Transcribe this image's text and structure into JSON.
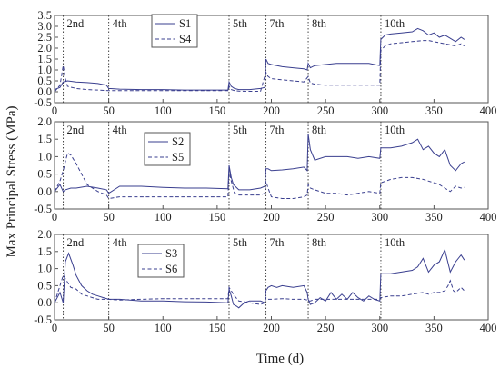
{
  "chart_data": {
    "type": "line",
    "xlabel": "Time (d)",
    "ylabel": "Max Principal Stress (MPa)",
    "xlim": [
      0,
      400
    ],
    "x_ticks": [
      "0",
      "50",
      "100",
      "150",
      "200",
      "250",
      "300",
      "350",
      "400"
    ],
    "stage_lines": [
      {
        "x": 8,
        "label": "2nd"
      },
      {
        "x": 50,
        "label": "4th"
      },
      {
        "x": 161,
        "label": "5th"
      },
      {
        "x": 195,
        "label": "7th"
      },
      {
        "x": 234,
        "label": "8th"
      },
      {
        "x": 301,
        "label": "10th"
      }
    ],
    "color": "#3a3f8f",
    "panels": [
      {
        "ylim": [
          -0.5,
          3.5
        ],
        "y_ticks": [
          "-0.5",
          "0.0",
          "0.5",
          "1.0",
          "1.5",
          "2.0",
          "2.5",
          "3.0",
          "3.5"
        ],
        "y_tick_values": [
          -0.5,
          0,
          0.5,
          1,
          1.5,
          2,
          2.5,
          3,
          3.5
        ],
        "series": [
          {
            "name": "S1",
            "style": "solid",
            "x": [
              0,
              5,
              8,
              12,
              20,
              30,
              40,
              48,
              50,
              60,
              80,
              100,
              120,
              140,
              160,
              161,
              163,
              166,
              170,
              180,
              190,
              194,
              195,
              197,
              200,
              210,
              220,
              230,
              233,
              234,
              236,
              240,
              250,
              260,
              270,
              280,
              290,
              295,
              300,
              301,
              305,
              310,
              320,
              330,
              335,
              340,
              345,
              350,
              355,
              360,
              365,
              370,
              375,
              378
            ],
            "y": [
              0.1,
              0.2,
              0.45,
              0.5,
              0.45,
              0.42,
              0.38,
              0.3,
              0.15,
              0.12,
              0.1,
              0.1,
              0.08,
              0.08,
              0.08,
              0.45,
              0.25,
              0.15,
              0.1,
              0.1,
              0.15,
              0.2,
              1.5,
              1.3,
              1.25,
              1.15,
              1.1,
              1.05,
              1.0,
              1.3,
              1.1,
              1.2,
              1.25,
              1.3,
              1.3,
              1.3,
              1.3,
              1.25,
              1.2,
              2.4,
              2.6,
              2.65,
              2.7,
              2.75,
              2.9,
              2.8,
              2.6,
              2.7,
              2.5,
              2.6,
              2.45,
              2.3,
              2.5,
              2.4
            ]
          },
          {
            "name": "S4",
            "style": "dashed",
            "x": [
              0,
              5,
              8,
              10,
              12,
              20,
              30,
              40,
              50,
              60,
              80,
              100,
              120,
              140,
              160,
              161,
              163,
              166,
              170,
              180,
              190,
              195,
              197,
              200,
              210,
              220,
              230,
              234,
              236,
              240,
              250,
              260,
              270,
              280,
              290,
              300,
              301,
              305,
              310,
              320,
              330,
              340,
              345,
              350,
              355,
              360,
              365,
              370,
              375,
              378
            ],
            "y": [
              0.0,
              0.3,
              1.2,
              0.6,
              0.25,
              0.15,
              0.1,
              0.08,
              0.05,
              0.05,
              0.05,
              0.05,
              0.05,
              0.05,
              0.05,
              0.25,
              0.1,
              0.05,
              0.03,
              0.02,
              0.02,
              0.9,
              0.7,
              0.6,
              0.55,
              0.5,
              0.45,
              0.7,
              0.4,
              0.35,
              0.3,
              0.3,
              0.3,
              0.3,
              0.3,
              0.3,
              1.9,
              2.1,
              2.2,
              2.25,
              2.3,
              2.35,
              2.35,
              2.3,
              2.25,
              2.2,
              2.15,
              2.1,
              2.2,
              2.1
            ]
          }
        ]
      },
      {
        "ylim": [
          -0.5,
          2.0
        ],
        "y_ticks": [
          "-0.5",
          "0.0",
          "0.5",
          "1.0",
          "1.5",
          "2.0"
        ],
        "y_tick_values": [
          -0.5,
          0,
          0.5,
          1,
          1.5,
          2
        ],
        "series": [
          {
            "name": "S2",
            "style": "solid",
            "x": [
              0,
              5,
              8,
              10,
              15,
              20,
              30,
              40,
              48,
              50,
              60,
              80,
              100,
              120,
              140,
              160,
              161,
              163,
              165,
              170,
              180,
              190,
              194,
              195,
              197,
              200,
              210,
              220,
              230,
              233,
              234,
              236,
              240,
              250,
              260,
              270,
              280,
              290,
              300,
              301,
              310,
              320,
              330,
              335,
              340,
              345,
              350,
              355,
              360,
              365,
              370,
              375,
              378
            ],
            "y": [
              0.0,
              0.2,
              0.0,
              0.05,
              0.1,
              0.1,
              0.15,
              0.1,
              0.05,
              -0.05,
              0.15,
              0.15,
              0.12,
              0.1,
              0.1,
              0.08,
              0.75,
              0.4,
              0.2,
              0.05,
              0.05,
              0.1,
              0.15,
              0.65,
              0.65,
              0.6,
              0.62,
              0.65,
              0.7,
              0.6,
              1.65,
              1.2,
              0.9,
              1.0,
              1.0,
              1.0,
              0.95,
              1.0,
              0.95,
              1.25,
              1.25,
              1.3,
              1.4,
              1.5,
              1.2,
              1.3,
              1.1,
              1.0,
              1.2,
              0.75,
              0.6,
              0.8,
              0.85
            ]
          },
          {
            "name": "S5",
            "style": "dashed",
            "x": [
              0,
              5,
              8,
              12,
              15,
              20,
              30,
              40,
              48,
              50,
              60,
              80,
              100,
              120,
              140,
              160,
              161,
              163,
              166,
              170,
              180,
              190,
              194,
              195,
              197,
              200,
              210,
              220,
              230,
              233,
              234,
              236,
              240,
              250,
              260,
              270,
              280,
              290,
              300,
              301,
              310,
              320,
              330,
              340,
              345,
              350,
              355,
              360,
              365,
              370,
              375,
              378
            ],
            "y": [
              0.0,
              0.3,
              0.6,
              1.1,
              1.05,
              0.8,
              0.2,
              0.0,
              -0.1,
              -0.2,
              -0.15,
              -0.15,
              -0.15,
              -0.15,
              -0.15,
              -0.15,
              0.6,
              0.3,
              -0.05,
              -0.1,
              -0.1,
              -0.1,
              -0.05,
              0.3,
              0.1,
              -0.15,
              -0.2,
              -0.2,
              -0.15,
              -0.1,
              0.2,
              0.1,
              0.05,
              -0.05,
              -0.05,
              -0.1,
              -0.05,
              0.0,
              -0.05,
              0.25,
              0.35,
              0.4,
              0.4,
              0.35,
              0.3,
              0.25,
              0.2,
              0.1,
              0.0,
              0.15,
              0.1,
              0.12
            ]
          }
        ]
      },
      {
        "ylim": [
          -0.5,
          2.0
        ],
        "y_ticks": [
          "-0.5",
          "0.0",
          "0.5",
          "1.0",
          "1.5",
          "2.0"
        ],
        "y_tick_values": [
          -0.5,
          0,
          0.5,
          1,
          1.5,
          2
        ],
        "series": [
          {
            "name": "S3",
            "style": "solid",
            "x": [
              0,
              5,
              8,
              10,
              13,
              17,
              20,
              25,
              30,
              35,
              40,
              45,
              50,
              60,
              80,
              100,
              120,
              140,
              160,
              161,
              163,
              165,
              168,
              170,
              175,
              180,
              190,
              194,
              195,
              197,
              200,
              205,
              210,
              220,
              230,
              233,
              234,
              236,
              240,
              245,
              250,
              255,
              260,
              265,
              270,
              275,
              280,
              285,
              290,
              295,
              300,
              301,
              310,
              320,
              330,
              335,
              340,
              345,
              350,
              355,
              360,
              365,
              370,
              375,
              378
            ],
            "y": [
              0.0,
              0.3,
              0.0,
              1.2,
              1.45,
              1.1,
              0.8,
              0.5,
              0.35,
              0.25,
              0.2,
              0.15,
              0.1,
              0.1,
              0.05,
              0.05,
              0.03,
              0.02,
              0.0,
              0.4,
              0.2,
              -0.05,
              -0.1,
              -0.15,
              0.0,
              0.05,
              0.05,
              0.0,
              0.35,
              0.45,
              0.5,
              0.45,
              0.5,
              0.45,
              0.5,
              0.3,
              0.1,
              -0.05,
              0.0,
              0.15,
              0.05,
              0.3,
              0.1,
              0.25,
              0.1,
              0.3,
              0.15,
              0.05,
              0.2,
              0.1,
              0.05,
              0.85,
              0.85,
              0.9,
              0.95,
              1.05,
              1.3,
              0.9,
              1.1,
              1.2,
              1.55,
              0.9,
              1.2,
              1.4,
              1.25
            ]
          },
          {
            "name": "S6",
            "style": "dashed",
            "x": [
              0,
              5,
              8,
              12,
              15,
              20,
              25,
              30,
              35,
              40,
              50,
              60,
              80,
              100,
              120,
              140,
              160,
              161,
              163,
              166,
              170,
              180,
              190,
              194,
              195,
              197,
              200,
              210,
              220,
              230,
              233,
              234,
              236,
              240,
              250,
              260,
              270,
              280,
              290,
              300,
              301,
              310,
              320,
              330,
              340,
              345,
              350,
              355,
              360,
              363,
              365,
              368,
              370,
              375,
              378
            ],
            "y": [
              0.0,
              0.5,
              0.8,
              0.6,
              0.45,
              0.4,
              0.25,
              0.2,
              0.15,
              0.1,
              0.1,
              0.08,
              0.1,
              0.12,
              0.12,
              0.12,
              0.12,
              0.45,
              0.35,
              0.2,
              0.05,
              0.0,
              -0.05,
              0.0,
              0.15,
              0.1,
              0.1,
              0.12,
              0.1,
              0.1,
              0.08,
              0.05,
              0.05,
              0.1,
              0.1,
              0.1,
              0.1,
              0.1,
              0.1,
              0.1,
              0.15,
              0.2,
              0.2,
              0.25,
              0.3,
              0.25,
              0.3,
              0.3,
              0.35,
              0.5,
              0.65,
              0.35,
              0.3,
              0.45,
              0.35
            ]
          }
        ]
      }
    ]
  }
}
